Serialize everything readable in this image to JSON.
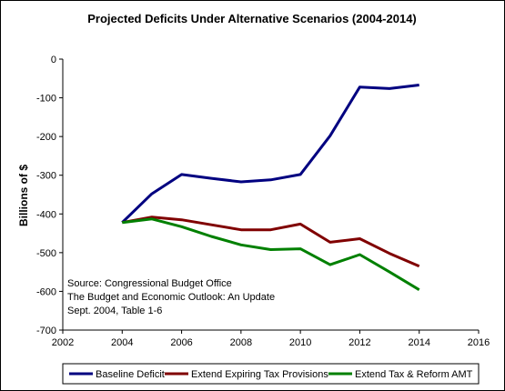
{
  "chart_data": {
    "type": "line",
    "title": "Projected Deficits Under Alternative Scenarios (2004-2014)",
    "xlabel": "",
    "ylabel": "Billions of $",
    "xlim": [
      2002,
      2016
    ],
    "ylim": [
      -700,
      0
    ],
    "x_ticks": [
      2002,
      2004,
      2006,
      2008,
      2010,
      2012,
      2014,
      2016
    ],
    "y_ticks": [
      0,
      -100,
      -200,
      -300,
      -400,
      -500,
      -600,
      -700
    ],
    "grid": false,
    "legend_position": "bottom",
    "x": [
      2004,
      2005,
      2006,
      2007,
      2008,
      2009,
      2010,
      2011,
      2012,
      2013,
      2014
    ],
    "series": [
      {
        "name": "Baseline Deficit",
        "color": "#000080",
        "values": [
          -422,
          -348,
          -298,
          -308,
          -317,
          -312,
          -298,
          -198,
          -72,
          -76,
          -67
        ]
      },
      {
        "name": "Extend Expiring Tax Provisions",
        "color": "#800000",
        "values": [
          -422,
          -408,
          -415,
          -428,
          -441,
          -441,
          -426,
          -473,
          -464,
          -502,
          -535
        ]
      },
      {
        "name": "Extend Tax & Reform AMT",
        "color": "#008000",
        "values": [
          -422,
          -413,
          -433,
          -458,
          -480,
          -492,
          -490,
          -531,
          -505,
          -550,
          -596
        ]
      }
    ],
    "annotation": [
      "Source: Congressional Budget Office",
      "The Budget and Economic Outlook: An Update",
      "Sept.  2004, Table 1-6"
    ]
  }
}
